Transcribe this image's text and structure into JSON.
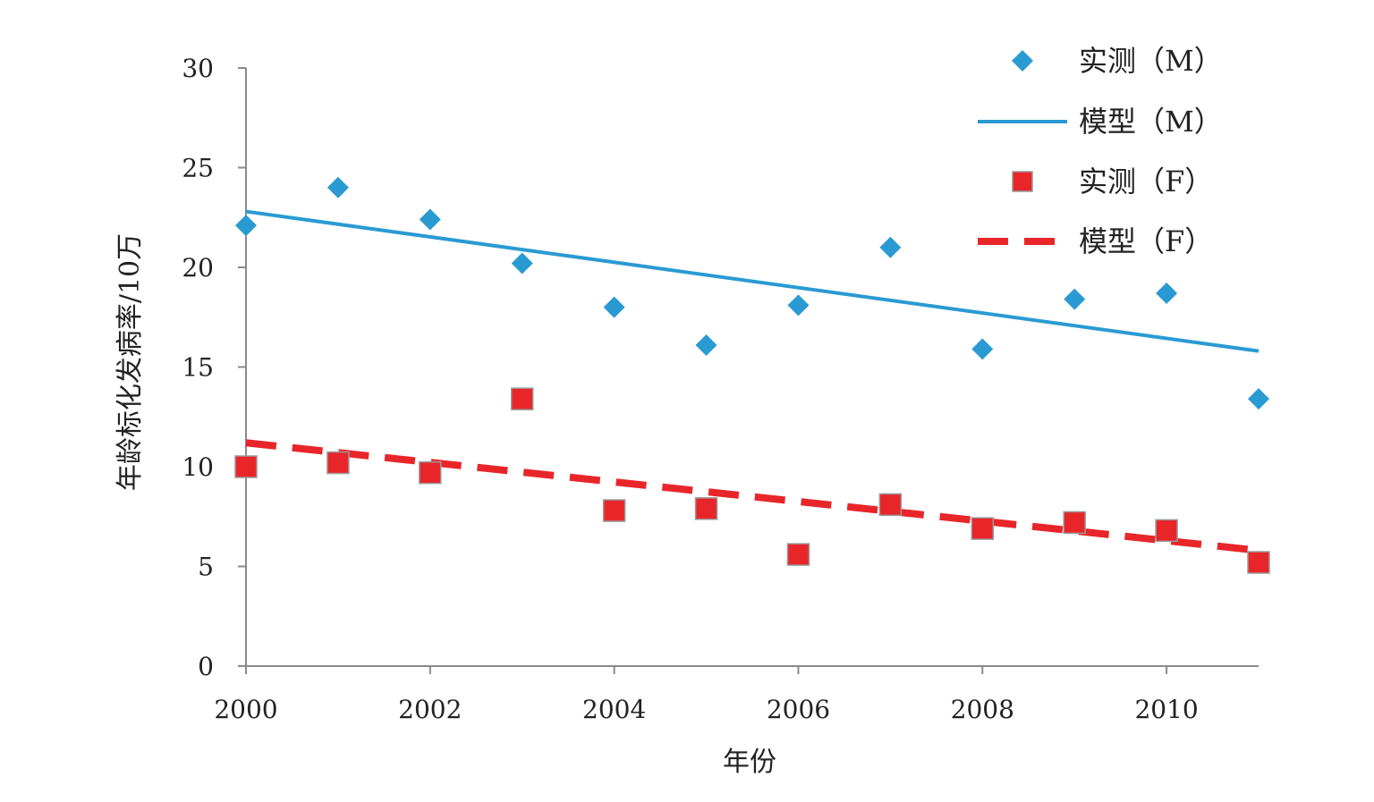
{
  "chart_data": {
    "type": "scatter",
    "xlabel": "年份",
    "ylabel": "年龄标化发病率/10万",
    "xlim": [
      2000,
      2011
    ],
    "ylim": [
      0,
      30
    ],
    "x_ticks": [
      "2000",
      "2002",
      "2004",
      "2006",
      "2008",
      "2010"
    ],
    "x_tick_values": [
      2000,
      2002,
      2004,
      2006,
      2008,
      2010
    ],
    "y_ticks": [
      "0",
      "5",
      "10",
      "15",
      "20",
      "25",
      "30"
    ],
    "y_tick_values": [
      0,
      5,
      10,
      15,
      20,
      25,
      30
    ],
    "grid": false,
    "legend_position": "top-right",
    "series": [
      {
        "name": "实测（M）",
        "kind": "marker",
        "marker": "diamond",
        "color": "#2a9ad3",
        "x": [
          2000,
          2001,
          2002,
          2003,
          2004,
          2005,
          2006,
          2007,
          2008,
          2009,
          2010,
          2011
        ],
        "y": [
          22.1,
          24.0,
          22.4,
          20.2,
          18.0,
          16.1,
          18.1,
          21.0,
          15.9,
          18.4,
          18.7,
          13.4
        ]
      },
      {
        "name": "模型（M）",
        "kind": "line",
        "style": "solid",
        "color": "#2a9ad3",
        "x": [
          2000,
          2011
        ],
        "y": [
          22.8,
          15.8
        ]
      },
      {
        "name": "实测（F）",
        "kind": "marker",
        "marker": "square",
        "color": "#e8262a",
        "x": [
          2000,
          2001,
          2002,
          2003,
          2004,
          2005,
          2006,
          2007,
          2008,
          2009,
          2010,
          2011
        ],
        "y": [
          10.0,
          10.2,
          9.7,
          13.4,
          7.8,
          7.9,
          5.6,
          8.1,
          6.9,
          7.2,
          6.8,
          5.2
        ]
      },
      {
        "name": "模型（F）",
        "kind": "line",
        "style": "dashed",
        "color": "#e8262a",
        "x": [
          2000,
          2011
        ],
        "y": [
          11.2,
          5.8
        ]
      }
    ]
  }
}
